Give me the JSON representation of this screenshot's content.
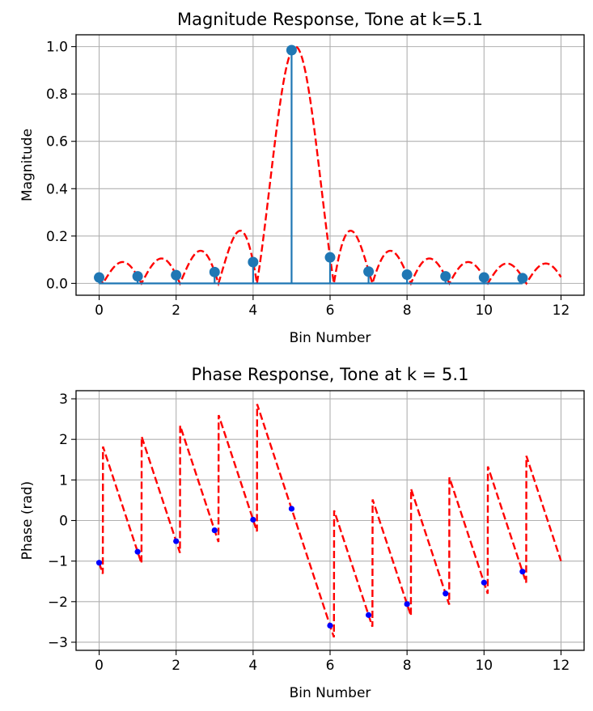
{
  "chart_data": [
    {
      "type": "stem+line",
      "title": "Magnitude Response, Tone at k=5.1",
      "xlabel": "Bin Number",
      "ylabel": "Magnitude",
      "xlim": [
        -0.6,
        12.6
      ],
      "ylim": [
        -0.05,
        1.05
      ],
      "xticks": [
        0,
        2,
        4,
        6,
        8,
        10,
        12
      ],
      "yticks": [
        0.0,
        0.2,
        0.4,
        0.6,
        0.8,
        1.0
      ],
      "ytick_labels": [
        "0.0",
        "0.2",
        "0.4",
        "0.6",
        "0.8",
        "1.0"
      ],
      "grid": true,
      "tone_k": 5.1,
      "n_bins": 12,
      "stem": {
        "color": "#1f77b4",
        "x": [
          0,
          1,
          2,
          3,
          4,
          5,
          6,
          7,
          8,
          9,
          10,
          11
        ],
        "values": [
          0.025,
          0.03,
          0.035,
          0.048,
          0.09,
          0.985,
          0.11,
          0.05,
          0.037,
          0.03,
          0.025,
          0.022
        ]
      },
      "curve": {
        "color": "#ff0000",
        "style": "dashed",
        "x_range": [
          0,
          12
        ]
      }
    },
    {
      "type": "scatter+line",
      "title": "Phase Response, Tone at k = 5.1",
      "xlabel": "Bin Number",
      "ylabel": "Phase (rad)",
      "xlim": [
        -0.6,
        12.6
      ],
      "ylim": [
        -3.2,
        3.2
      ],
      "xticks": [
        0,
        2,
        4,
        6,
        8,
        10,
        12
      ],
      "yticks": [
        -3,
        -2,
        -1,
        0,
        1,
        2,
        3
      ],
      "ytick_labels": [
        "−3",
        "−2",
        "−1",
        "0",
        "1",
        "2",
        "3"
      ],
      "grid": true,
      "points": {
        "color": "#0000ff",
        "x": [
          0,
          1,
          2,
          3,
          4,
          5,
          6,
          7,
          8,
          9,
          10,
          11
        ],
        "values": [
          -1.04,
          -0.77,
          -0.51,
          -0.24,
          0.02,
          0.29,
          -2.59,
          -2.33,
          -2.06,
          -1.8,
          -1.53,
          -1.26
        ]
      },
      "curve": {
        "color": "#ff0000",
        "style": "dashed",
        "x_range": [
          0,
          12
        ]
      }
    }
  ]
}
